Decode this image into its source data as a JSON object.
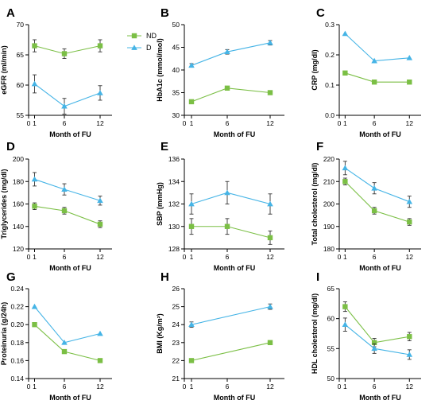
{
  "colors": {
    "ND": "#7bbf45",
    "D": "#45b4e6"
  },
  "legend": [
    {
      "key": "ND",
      "label": "ND"
    },
    {
      "key": "D",
      "label": "D"
    }
  ],
  "chart_data": [
    {
      "panel": "A",
      "type": "line",
      "ylabel": "eGFR (ml/min)",
      "xlabel": "Month of FU",
      "x": [
        1,
        6,
        12
      ],
      "xlim": [
        0,
        14
      ],
      "xticks": [
        0,
        1,
        6,
        12
      ],
      "xtick_labels": [
        "0",
        "1",
        "6",
        "12"
      ],
      "ylim": [
        55,
        70
      ],
      "yticks": [
        55,
        60,
        65,
        70
      ],
      "series": [
        {
          "name": "ND",
          "values": [
            66.5,
            65.2,
            66.5
          ],
          "errors": [
            1.0,
            0.8,
            1.0
          ]
        },
        {
          "name": "D",
          "values": [
            60.2,
            56.5,
            58.7
          ],
          "errors": [
            1.5,
            1.3,
            1.2
          ]
        }
      ]
    },
    {
      "panel": "B",
      "type": "line",
      "ylabel": "HbA1c (mmol/mol)",
      "xlabel": "Month of FU",
      "x": [
        1,
        6,
        12
      ],
      "xlim": [
        0,
        14
      ],
      "xticks": [
        0,
        1,
        6,
        12
      ],
      "xtick_labels": [
        "0",
        "1",
        "6",
        "12"
      ],
      "ylim": [
        30,
        50
      ],
      "yticks": [
        30,
        35,
        40,
        45,
        50
      ],
      "series": [
        {
          "name": "ND",
          "values": [
            33,
            36,
            35
          ],
          "errors": [
            0.2,
            0.2,
            0.2
          ]
        },
        {
          "name": "D",
          "values": [
            41,
            44,
            46
          ],
          "errors": [
            0.4,
            0.5,
            0.5
          ]
        }
      ]
    },
    {
      "panel": "C",
      "type": "line",
      "ylabel": "CRP (mg/dl)",
      "xlabel": "Month of FU",
      "x": [
        1,
        6,
        12
      ],
      "xlim": [
        0,
        14
      ],
      "xticks": [
        0,
        1,
        6,
        12
      ],
      "xtick_labels": [
        "0",
        "1",
        "6",
        "12"
      ],
      "ylim": [
        0.0,
        0.3
      ],
      "yticks": [
        0.0,
        0.1,
        0.2,
        0.3
      ],
      "ytick_labels": [
        "0.0",
        "0.1",
        "0.2",
        "0.3"
      ],
      "series": [
        {
          "name": "ND",
          "values": [
            0.14,
            0.11,
            0.11
          ],
          "errors": [
            0,
            0,
            0
          ]
        },
        {
          "name": "D",
          "values": [
            0.27,
            0.18,
            0.19
          ],
          "errors": [
            0,
            0,
            0
          ]
        }
      ]
    },
    {
      "panel": "D",
      "type": "line",
      "ylabel": "Triglycerides (mg/dl)",
      "xlabel": "Month of FU",
      "x": [
        1,
        6,
        12
      ],
      "xlim": [
        0,
        14
      ],
      "xticks": [
        0,
        1,
        6,
        12
      ],
      "xtick_labels": [
        "0",
        "1",
        "6",
        "12"
      ],
      "ylim": [
        120,
        200
      ],
      "yticks": [
        120,
        140,
        160,
        180,
        200
      ],
      "series": [
        {
          "name": "ND",
          "values": [
            158,
            154,
            142
          ],
          "errors": [
            3,
            3,
            3
          ]
        },
        {
          "name": "D",
          "values": [
            182,
            173,
            163
          ],
          "errors": [
            6,
            5,
            4
          ]
        }
      ]
    },
    {
      "panel": "E",
      "type": "line",
      "ylabel": "SBP (mmHg)",
      "xlabel": "Month of FU",
      "x": [
        1,
        6,
        12
      ],
      "xlim": [
        0,
        14
      ],
      "xticks": [
        0,
        1,
        6,
        12
      ],
      "xtick_labels": [
        "0",
        "1",
        "6",
        "12"
      ],
      "ylim": [
        128,
        136
      ],
      "yticks": [
        128,
        130,
        132,
        134,
        136
      ],
      "series": [
        {
          "name": "ND",
          "values": [
            130,
            130,
            129
          ],
          "errors": [
            0.7,
            0.7,
            0.6
          ]
        },
        {
          "name": "D",
          "values": [
            132,
            133,
            132
          ],
          "errors": [
            0.9,
            1.0,
            0.9
          ]
        }
      ]
    },
    {
      "panel": "F",
      "type": "line",
      "ylabel": "Total cholesterol (mg/dl)",
      "xlabel": "Month of FU",
      "x": [
        1,
        6,
        12
      ],
      "xlim": [
        0,
        14
      ],
      "xticks": [
        0,
        1,
        6,
        12
      ],
      "xtick_labels": [
        "0",
        "1",
        "6",
        "12"
      ],
      "ylim": [
        180,
        220
      ],
      "yticks": [
        180,
        190,
        200,
        210,
        220
      ],
      "series": [
        {
          "name": "ND",
          "values": [
            210,
            197,
            192
          ],
          "errors": [
            1.5,
            1.5,
            1.5
          ]
        },
        {
          "name": "D",
          "values": [
            216,
            207,
            201
          ],
          "errors": [
            3,
            2.5,
            2.5
          ]
        }
      ]
    },
    {
      "panel": "G",
      "type": "line",
      "ylabel": "Proteinuria (g/24h)",
      "xlabel": "Month of FU",
      "x": [
        1,
        6,
        12
      ],
      "xlim": [
        0,
        14
      ],
      "xticks": [
        0,
        1,
        6,
        12
      ],
      "xtick_labels": [
        "0",
        "1",
        "6",
        "12"
      ],
      "ylim": [
        0.14,
        0.24
      ],
      "yticks": [
        0.14,
        0.16,
        0.18,
        0.2,
        0.22,
        0.24
      ],
      "ytick_labels": [
        "0.14",
        "0.16",
        "0.18",
        "0.20",
        "0.22",
        "0.24"
      ],
      "series": [
        {
          "name": "ND",
          "values": [
            0.2,
            0.17,
            0.16
          ],
          "errors": [
            0,
            0,
            0
          ]
        },
        {
          "name": "D",
          "values": [
            0.22,
            0.18,
            0.19
          ],
          "errors": [
            0,
            0,
            0
          ]
        }
      ]
    },
    {
      "panel": "H",
      "type": "line",
      "ylabel": "BMI (Kg/m²)",
      "xlabel": "Month of FU",
      "x": [
        1,
        12
      ],
      "xlim": [
        0,
        14
      ],
      "xticks": [
        0,
        1,
        6,
        12
      ],
      "xtick_labels": [
        "0",
        "1",
        "6",
        "12"
      ],
      "ylim": [
        21,
        26
      ],
      "yticks": [
        21,
        22,
        23,
        24,
        25,
        26
      ],
      "series": [
        {
          "name": "ND",
          "values": [
            22,
            23
          ],
          "errors": [
            0.1,
            0.1
          ]
        },
        {
          "name": "D",
          "values": [
            24,
            25
          ],
          "errors": [
            0.15,
            0.15
          ]
        }
      ]
    },
    {
      "panel": "I",
      "type": "line",
      "ylabel": "HDL cholesterol (mg/dl)",
      "xlabel": "Month of FU",
      "x": [
        1,
        6,
        12
      ],
      "xlim": [
        0,
        14
      ],
      "xticks": [
        0,
        1,
        6,
        12
      ],
      "xtick_labels": [
        "0",
        "1",
        "6",
        "12"
      ],
      "ylim": [
        50,
        65
      ],
      "yticks": [
        50,
        55,
        60,
        65
      ],
      "series": [
        {
          "name": "ND",
          "values": [
            62,
            56,
            57
          ],
          "errors": [
            0.8,
            0.7,
            0.7
          ]
        },
        {
          "name": "D",
          "values": [
            59,
            55,
            54
          ],
          "errors": [
            1.1,
            0.8,
            0.8
          ]
        }
      ]
    }
  ]
}
